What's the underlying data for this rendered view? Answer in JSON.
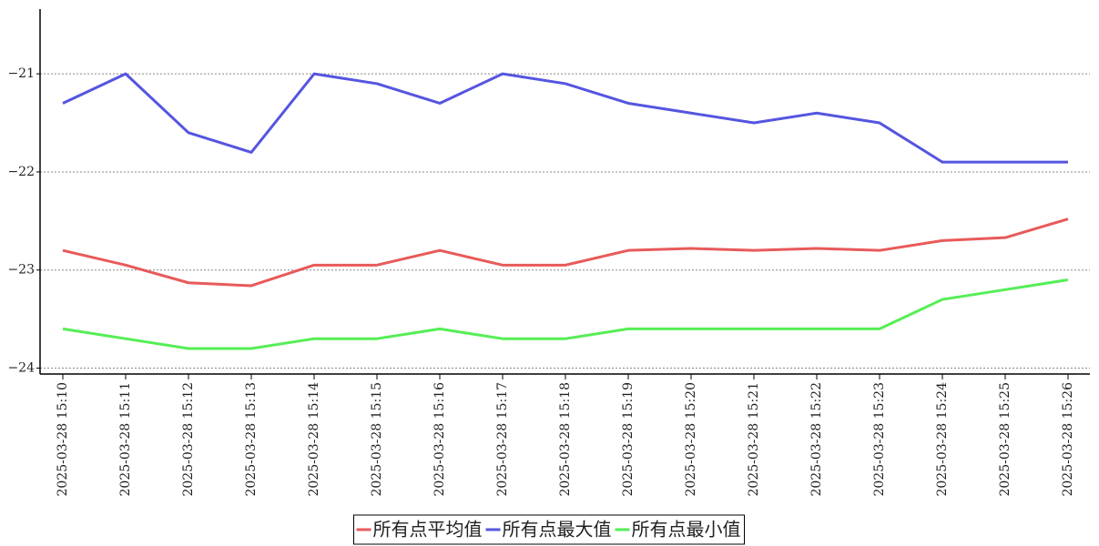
{
  "chart_data": {
    "type": "line",
    "categories": [
      "2025-03-28 15:10",
      "2025-03-28 15:11",
      "2025-03-28 15:12",
      "2025-03-28 15:13",
      "2025-03-28 15:14",
      "2025-03-28 15:15",
      "2025-03-28 15:16",
      "2025-03-28 15:17",
      "2025-03-28 15:18",
      "2025-03-28 15:19",
      "2025-03-28 15:20",
      "2025-03-28 15:21",
      "2025-03-28 15:22",
      "2025-03-28 15:23",
      "2025-03-28 15:24",
      "2025-03-28 15:25",
      "2025-03-28 15:26"
    ],
    "series": [
      {
        "name": "所有点平均值",
        "color": "#e85a5a",
        "values": [
          -22.8,
          -22.95,
          -23.13,
          -23.16,
          -22.95,
          -22.95,
          -22.8,
          -22.95,
          -22.95,
          -22.8,
          -22.78,
          -22.8,
          -22.78,
          -22.8,
          -22.7,
          -22.67,
          -22.48
        ]
      },
      {
        "name": "所有点最大值",
        "color": "#5555e0",
        "values": [
          -21.3,
          -21.0,
          -21.6,
          -21.8,
          -21.0,
          -21.1,
          -21.3,
          -21.0,
          -21.1,
          -21.3,
          -21.4,
          -21.5,
          -21.4,
          -21.5,
          -21.9,
          -21.9,
          -21.9
        ]
      },
      {
        "name": "所有点最小值",
        "color": "#55ee55",
        "values": [
          -23.6,
          -23.7,
          -23.8,
          -23.8,
          -23.7,
          -23.7,
          -23.6,
          -23.7,
          -23.7,
          -23.6,
          -23.6,
          -23.6,
          -23.6,
          -23.6,
          -23.3,
          -23.2,
          -23.1
        ]
      }
    ],
    "ylim": [
      -24.06,
      -20.34
    ],
    "yticks": [
      {
        "value": -21,
        "label": "−21"
      },
      {
        "value": -22,
        "label": "−22"
      },
      {
        "value": -23,
        "label": "−23"
      },
      {
        "value": -24,
        "label": "−24"
      }
    ],
    "grid": true,
    "legend": "bottom"
  }
}
